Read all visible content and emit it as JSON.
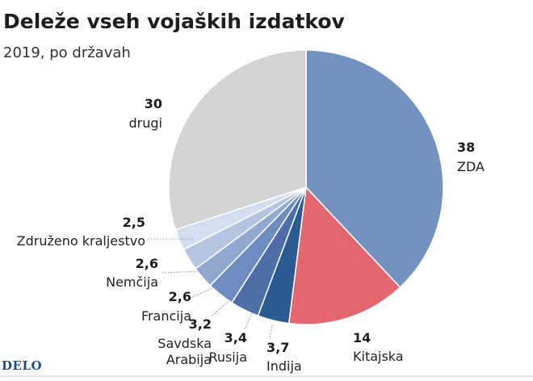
{
  "chart_data": {
    "type": "pie",
    "title": "Deleže vseh vojaških izdatkov",
    "subtitle": "2019, po državah",
    "slices": [
      {
        "label": "ZDA",
        "value": 38,
        "value_label": "38",
        "color": "#7392bf"
      },
      {
        "label": "Kitajska",
        "value": 14,
        "value_label": "14",
        "color": "#e2676f"
      },
      {
        "label": "Indija",
        "value": 3.7,
        "value_label": "3,7",
        "color": "#2c5a92"
      },
      {
        "label": "Rusija",
        "value": 3.4,
        "value_label": "3,4",
        "color": "#4d6ea8"
      },
      {
        "label": "Savdska Arabija",
        "value": 3.2,
        "value_label": "3,2",
        "color": "#6e8cc0"
      },
      {
        "label": "Francija",
        "value": 2.6,
        "value_label": "2,6",
        "color": "#93a8d1"
      },
      {
        "label": "Nemčija",
        "value": 2.6,
        "value_label": "2,6",
        "color": "#b5c4e1"
      },
      {
        "label": "Združeno kraljestvo",
        "value": 2.5,
        "value_label": "2,5",
        "color": "#d5def0"
      },
      {
        "label": "drugi",
        "value": 30,
        "value_label": "30",
        "color": "#d4d4d4"
      }
    ]
  },
  "footer": {
    "logo": "DELO"
  }
}
